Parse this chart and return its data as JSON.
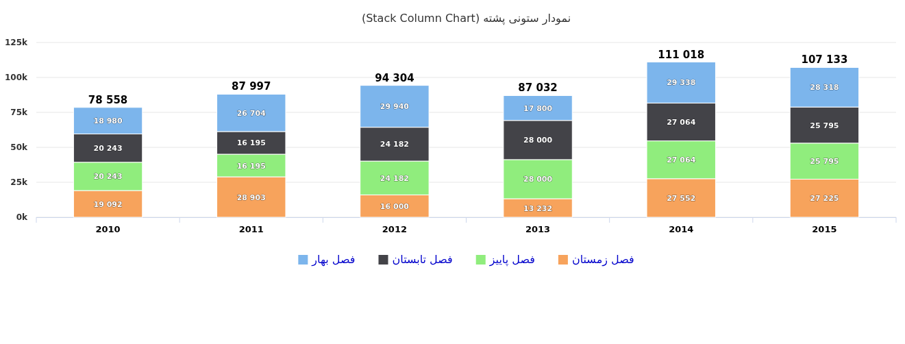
{
  "chart_data": {
    "type": "bar",
    "title": "نمودار ستونی پشته (Stack Column Chart)",
    "categories": [
      "2010",
      "2011",
      "2012",
      "2013",
      "2014",
      "2015"
    ],
    "stacked": true,
    "series": [
      {
        "name": "فصل زمستان",
        "color": "#f7a35c",
        "values": [
          19092,
          28903,
          16000,
          13232,
          27552,
          27225
        ],
        "value_labels": [
          "19 092",
          "28 903",
          "16 000",
          "13 232",
          "27 552",
          "27 225"
        ]
      },
      {
        "name": "فصل پاییز",
        "color": "#90ed7d",
        "values": [
          20243,
          16195,
          24182,
          28000,
          27064,
          25795
        ],
        "value_labels": [
          "20 243",
          "16 195",
          "24 182",
          "28 000",
          "27 064",
          "25 795"
        ]
      },
      {
        "name": "فصل تابستان",
        "color": "#434348",
        "values": [
          20243,
          16195,
          24182,
          28000,
          27064,
          25795
        ],
        "value_labels": [
          "20 243",
          "16 195",
          "24 182",
          "28 000",
          "27 064",
          "25 795"
        ]
      },
      {
        "name": "فصل بهار",
        "color": "#7cb5ec",
        "values": [
          18980,
          26704,
          29940,
          17800,
          29338,
          28318
        ],
        "value_labels": [
          "18 980",
          "26 704",
          "29 940",
          "17 800",
          "29 338",
          "28 318"
        ]
      }
    ],
    "totals": [
      "78 558",
      "87 997",
      "94 304",
      "87 032",
      "111 018",
      "107 133"
    ],
    "ylim": [
      0,
      125000
    ],
    "yticks": [
      {
        "value": 0,
        "label": "0k"
      },
      {
        "value": 25000,
        "label": "25k"
      },
      {
        "value": 50000,
        "label": "50k"
      },
      {
        "value": 75000,
        "label": "75k"
      },
      {
        "value": 100000,
        "label": "100k"
      },
      {
        "value": 125000,
        "label": "125k"
      }
    ],
    "grid": "y",
    "legend": "bottom"
  }
}
